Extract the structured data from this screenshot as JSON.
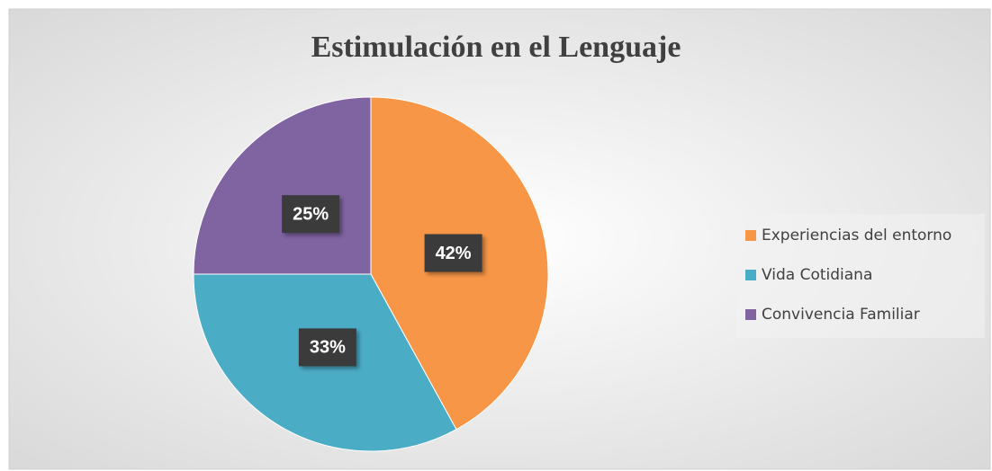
{
  "chart_data": {
    "type": "pie",
    "title": "Estimulación en el Lenguaje",
    "categories": [
      "Experiencias del entorno",
      "Vida Cotidiana",
      "Convivencia Familiar"
    ],
    "values": [
      42,
      33,
      25
    ],
    "value_labels": [
      "42%",
      "33%",
      "25%"
    ],
    "colors": [
      "#f79646",
      "#4bacc6",
      "#8064a2"
    ],
    "legend": "right"
  }
}
